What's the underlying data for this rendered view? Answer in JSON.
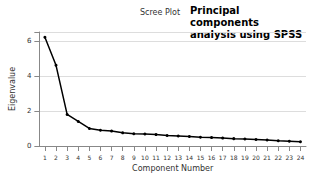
{
  "chart_data": {
    "type": "line",
    "title": "Scree Plot",
    "annotation": "Principal components analysis using SPSS",
    "x_label": "Component Number",
    "y_label": "Eigenvalue",
    "categories": [
      1,
      2,
      3,
      4,
      5,
      6,
      7,
      8,
      9,
      10,
      11,
      12,
      13,
      14,
      15,
      16,
      17,
      18,
      19,
      20,
      21,
      22,
      23,
      24
    ],
    "values": [
      6.2,
      4.6,
      1.8,
      1.4,
      1.0,
      0.9,
      0.85,
      0.75,
      0.7,
      0.68,
      0.65,
      0.6,
      0.57,
      0.54,
      0.5,
      0.48,
      0.45,
      0.42,
      0.4,
      0.37,
      0.34,
      0.3,
      0.27,
      0.24
    ],
    "color": "#000000",
    "marker": "circle",
    "ylim": [
      0,
      6.5
    ],
    "yticks": [
      0,
      2,
      4,
      6
    ],
    "grid": true
  }
}
